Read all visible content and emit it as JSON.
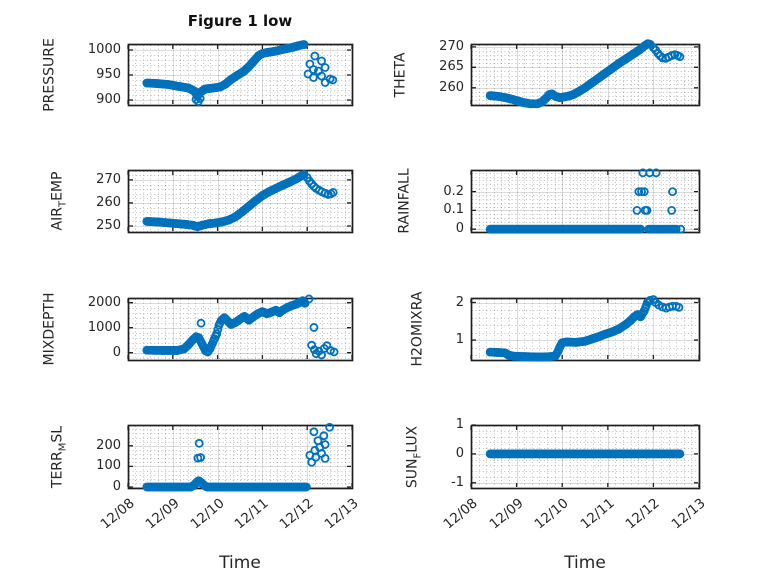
{
  "figure": {
    "title": "Figure 1 low",
    "xlabel": "Time",
    "background": "#ffffff",
    "accent_color": "#0072BD",
    "axis_color": "#262626"
  },
  "chart_data": {
    "type": "scatter",
    "title": "Figure 1 low",
    "xlabel": "Time",
    "marker": "open-circle",
    "marker_color": "#0072BD",
    "grid": "major-solid-minor-dotted",
    "xlim": [
      0,
      5
    ],
    "x_tick_values": [
      0,
      1,
      2,
      3,
      4,
      5
    ],
    "x_tick_labels": [
      "12/08",
      "12/09",
      "12/10",
      "12/11",
      "12/12",
      "12/13"
    ],
    "x_minor_step": 0.16667,
    "sample_step": 0.025,
    "subplots": [
      {
        "id": "pressure",
        "row": 0,
        "col": 0,
        "ylabel": {
          "pre": "PRESSURE",
          "sub": "",
          "post": ""
        },
        "ytick_values": [
          900,
          950,
          1000
        ],
        "ytick_labels": [
          "900",
          "950",
          "1000"
        ],
        "ylim": [
          890,
          1012
        ],
        "trend": [
          [
            0.42,
            934
          ],
          [
            0.65,
            933
          ],
          [
            0.9,
            931
          ],
          [
            1.15,
            927
          ],
          [
            1.35,
            924
          ],
          [
            1.48,
            918
          ],
          [
            1.55,
            908
          ],
          [
            1.62,
            916
          ],
          [
            1.72,
            922
          ],
          [
            1.9,
            924
          ],
          [
            2.05,
            926
          ],
          [
            2.18,
            932
          ],
          [
            2.3,
            941
          ],
          [
            2.45,
            950
          ],
          [
            2.58,
            957
          ],
          [
            2.7,
            967
          ],
          [
            2.82,
            979
          ],
          [
            2.92,
            989
          ],
          [
            3.0,
            993
          ],
          [
            3.1,
            995
          ],
          [
            3.25,
            997
          ],
          [
            3.4,
            1000
          ],
          [
            3.55,
            1003
          ],
          [
            3.7,
            1006
          ],
          [
            3.82,
            1009
          ],
          [
            3.93,
            1011
          ]
        ],
        "scatter": [
          [
            1.52,
            901
          ],
          [
            1.57,
            897
          ],
          [
            1.61,
            903
          ],
          [
            4.02,
            952
          ],
          [
            4.06,
            972
          ],
          [
            4.14,
            961
          ],
          [
            4.14,
            945
          ],
          [
            4.17,
            988
          ],
          [
            4.25,
            958
          ],
          [
            4.32,
            978
          ],
          [
            4.32,
            948
          ],
          [
            4.4,
            965
          ],
          [
            4.4,
            935
          ],
          [
            4.51,
            942
          ],
          [
            4.57,
            940
          ]
        ]
      },
      {
        "id": "theta",
        "row": 0,
        "col": 1,
        "ylabel": {
          "pre": "THETA",
          "sub": "",
          "post": ""
        },
        "ytick_values": [
          260,
          265,
          270
        ],
        "ytick_labels": [
          "260",
          "265",
          "270"
        ],
        "ylim": [
          255.8,
          270.7
        ],
        "trend": [
          [
            0.42,
            258.1
          ],
          [
            0.6,
            257.9
          ],
          [
            0.8,
            257.5
          ],
          [
            1.0,
            256.9
          ],
          [
            1.15,
            256.4
          ],
          [
            1.3,
            256.1
          ],
          [
            1.45,
            256.1
          ],
          [
            1.55,
            256.5
          ],
          [
            1.65,
            257.5
          ],
          [
            1.72,
            258.4
          ],
          [
            1.78,
            258.5
          ],
          [
            1.85,
            257.9
          ],
          [
            1.95,
            257.6
          ],
          [
            2.05,
            257.8
          ],
          [
            2.15,
            258.0
          ],
          [
            2.25,
            258.4
          ],
          [
            2.35,
            259.0
          ],
          [
            2.5,
            260.0
          ],
          [
            2.65,
            261.2
          ],
          [
            2.8,
            262.4
          ],
          [
            2.95,
            263.6
          ],
          [
            3.1,
            264.8
          ],
          [
            3.25,
            266.0
          ],
          [
            3.4,
            267.1
          ],
          [
            3.55,
            268.2
          ],
          [
            3.7,
            269.3
          ],
          [
            3.8,
            270.2
          ],
          [
            3.88,
            270.8
          ],
          [
            3.93,
            270.6
          ]
        ],
        "scatter": [
          [
            4.0,
            269.8
          ],
          [
            4.05,
            269.2
          ],
          [
            4.1,
            268.4
          ],
          [
            4.15,
            267.8
          ],
          [
            4.2,
            267.3
          ],
          [
            4.27,
            267.2
          ],
          [
            4.33,
            267.5
          ],
          [
            4.4,
            267.9
          ],
          [
            4.47,
            268.1
          ],
          [
            4.53,
            267.9
          ],
          [
            4.58,
            267.6
          ]
        ]
      },
      {
        "id": "air-temp",
        "row": 1,
        "col": 0,
        "ylabel": {
          "pre": "AIR",
          "sub": "T",
          "post": "EMP"
        },
        "ytick_values": [
          250,
          260,
          270
        ],
        "ytick_labels": [
          "250",
          "260",
          "270"
        ],
        "ylim": [
          247.4,
          274.3
        ],
        "trend": [
          [
            0.42,
            252.0
          ],
          [
            0.7,
            251.7
          ],
          [
            1.0,
            251.2
          ],
          [
            1.3,
            250.7
          ],
          [
            1.45,
            250.3
          ],
          [
            1.55,
            249.7
          ],
          [
            1.65,
            250.3
          ],
          [
            1.8,
            251.0
          ],
          [
            1.95,
            251.3
          ],
          [
            2.1,
            251.8
          ],
          [
            2.25,
            252.6
          ],
          [
            2.4,
            254.0
          ],
          [
            2.55,
            256.2
          ],
          [
            2.7,
            258.6
          ],
          [
            2.85,
            261.0
          ],
          [
            3.0,
            263.2
          ],
          [
            3.15,
            264.9
          ],
          [
            3.3,
            266.3
          ],
          [
            3.45,
            267.7
          ],
          [
            3.6,
            269.0
          ],
          [
            3.75,
            270.4
          ],
          [
            3.87,
            271.8
          ],
          [
            3.93,
            272.4
          ]
        ],
        "scatter": [
          [
            4.0,
            271.0
          ],
          [
            4.05,
            269.5
          ],
          [
            4.1,
            268.3
          ],
          [
            4.15,
            267.2
          ],
          [
            4.2,
            266.3
          ],
          [
            4.27,
            265.5
          ],
          [
            4.33,
            264.8
          ],
          [
            4.4,
            264.2
          ],
          [
            4.47,
            263.7
          ],
          [
            4.53,
            264.0
          ],
          [
            4.58,
            264.6
          ]
        ]
      },
      {
        "id": "rainfall",
        "row": 1,
        "col": 1,
        "ylabel": {
          "pre": "RAINFALL",
          "sub": "",
          "post": ""
        },
        "ytick_values": [
          0,
          0.1,
          0.2
        ],
        "ytick_labels": [
          "0",
          "0.1",
          "0.2"
        ],
        "ylim": [
          -0.015,
          0.315
        ],
        "trend": [
          [
            0.42,
            0
          ],
          [
            3.72,
            0
          ]
        ],
        "scatter": [
          [
            3.9,
            0
          ],
          [
            3.94,
            0
          ],
          [
            3.98,
            0
          ],
          [
            4.02,
            0
          ],
          [
            4.06,
            0
          ],
          [
            4.1,
            0
          ],
          [
            4.14,
            0
          ],
          [
            4.18,
            0
          ],
          [
            4.22,
            0
          ],
          [
            4.26,
            0
          ],
          [
            4.3,
            0
          ],
          [
            4.34,
            0
          ],
          [
            4.38,
            0
          ],
          [
            4.42,
            0
          ],
          [
            4.46,
            0
          ],
          [
            4.5,
            0
          ],
          [
            4.6,
            0
          ],
          [
            3.64,
            0.1
          ],
          [
            3.82,
            0.1
          ],
          [
            3.86,
            0.1
          ],
          [
            4.4,
            0.1
          ],
          [
            3.68,
            0.2
          ],
          [
            3.74,
            0.2
          ],
          [
            3.8,
            0.2
          ],
          [
            4.42,
            0.2
          ],
          [
            3.77,
            0.3
          ],
          [
            3.92,
            0.3
          ],
          [
            4.06,
            0.3
          ]
        ]
      },
      {
        "id": "mixdepth",
        "row": 2,
        "col": 0,
        "ylabel": {
          "pre": "MIXDEPTH",
          "sub": "",
          "post": ""
        },
        "ytick_values": [
          0,
          1000,
          2000
        ],
        "ytick_labels": [
          "0",
          "1000",
          "2000"
        ],
        "ylim": [
          -292,
          2188
        ],
        "trend": [
          [
            0.42,
            100
          ],
          [
            0.8,
            90
          ],
          [
            1.1,
            90
          ],
          [
            1.25,
            150
          ],
          [
            1.35,
            320
          ],
          [
            1.45,
            520
          ],
          [
            1.52,
            640
          ],
          [
            1.58,
            600
          ],
          [
            1.63,
            430
          ],
          [
            1.68,
            260
          ],
          [
            1.73,
            80
          ],
          [
            1.78,
            30
          ],
          [
            1.83,
            160
          ],
          [
            1.88,
            350
          ],
          [
            1.93,
            560
          ],
          [
            1.98,
            760
          ],
          [
            2.03,
            1100
          ],
          [
            2.08,
            1280
          ],
          [
            2.15,
            1400
          ],
          [
            2.22,
            1280
          ],
          [
            2.3,
            1130
          ],
          [
            2.4,
            1210
          ],
          [
            2.5,
            1340
          ],
          [
            2.6,
            1450
          ],
          [
            2.7,
            1300
          ],
          [
            2.8,
            1440
          ],
          [
            2.9,
            1560
          ],
          [
            3.0,
            1640
          ],
          [
            3.1,
            1560
          ],
          [
            3.2,
            1620
          ],
          [
            3.3,
            1700
          ],
          [
            3.38,
            1600
          ],
          [
            3.45,
            1700
          ],
          [
            3.55,
            1800
          ],
          [
            3.65,
            1880
          ],
          [
            3.75,
            1940
          ],
          [
            3.85,
            2020
          ],
          [
            3.9,
            2080
          ],
          [
            3.95,
            1980
          ]
        ],
        "scatter": [
          [
            1.63,
            1180
          ],
          [
            4.04,
            2150
          ],
          [
            4.15,
            1010
          ],
          [
            4.1,
            300
          ],
          [
            4.16,
            120
          ],
          [
            4.2,
            -40
          ],
          [
            4.26,
            60
          ],
          [
            4.32,
            -90
          ],
          [
            4.38,
            170
          ],
          [
            4.44,
            280
          ],
          [
            4.52,
            90
          ],
          [
            4.6,
            30
          ]
        ]
      },
      {
        "id": "h2omixra",
        "row": 2,
        "col": 1,
        "ylabel": {
          "pre": "H2OMIXRA",
          "sub": "",
          "post": ""
        },
        "ytick_values": [
          1,
          2
        ],
        "ytick_labels": [
          "1",
          "2"
        ],
        "ylim": [
          0.47,
          2.12
        ],
        "trend": [
          [
            0.42,
            0.68
          ],
          [
            0.6,
            0.67
          ],
          [
            0.75,
            0.66
          ],
          [
            0.82,
            0.6
          ],
          [
            0.95,
            0.57
          ],
          [
            1.2,
            0.56
          ],
          [
            1.5,
            0.55
          ],
          [
            1.75,
            0.56
          ],
          [
            1.85,
            0.58
          ],
          [
            1.9,
            0.68
          ],
          [
            1.95,
            0.82
          ],
          [
            2.0,
            0.93
          ],
          [
            2.1,
            0.95
          ],
          [
            2.3,
            0.94
          ],
          [
            2.5,
            0.97
          ],
          [
            2.65,
            1.03
          ],
          [
            2.8,
            1.09
          ],
          [
            2.95,
            1.16
          ],
          [
            3.1,
            1.22
          ],
          [
            3.25,
            1.3
          ],
          [
            3.4,
            1.42
          ],
          [
            3.5,
            1.52
          ],
          [
            3.58,
            1.62
          ],
          [
            3.65,
            1.68
          ],
          [
            3.72,
            1.62
          ],
          [
            3.8,
            1.78
          ],
          [
            3.87,
            2.0
          ],
          [
            3.93,
            2.06
          ]
        ],
        "scatter": [
          [
            4.0,
            2.08
          ],
          [
            4.05,
            2.0
          ],
          [
            4.12,
            1.93
          ],
          [
            4.2,
            1.88
          ],
          [
            4.28,
            1.85
          ],
          [
            4.35,
            1.88
          ],
          [
            4.42,
            1.9
          ],
          [
            4.5,
            1.9
          ],
          [
            4.56,
            1.87
          ]
        ]
      },
      {
        "id": "terr-msl",
        "row": 3,
        "col": 0,
        "ylabel": {
          "pre": "TERR",
          "sub": "M",
          "post": "SL"
        },
        "ytick_values": [
          0,
          100,
          200
        ],
        "ytick_labels": [
          "0",
          "100",
          "200"
        ],
        "ylim": [
          -5,
          301
        ],
        "trend": [
          [
            0.42,
            0
          ],
          [
            1.4,
            0
          ],
          [
            1.47,
            8
          ],
          [
            1.53,
            22
          ],
          [
            1.58,
            30
          ],
          [
            1.64,
            20
          ],
          [
            1.7,
            8
          ],
          [
            1.76,
            0
          ],
          [
            3.98,
            0
          ]
        ],
        "scatter": [
          [
            1.56,
            140
          ],
          [
            1.62,
            143
          ],
          [
            1.59,
            212
          ],
          [
            4.15,
            268
          ],
          [
            4.5,
            290
          ],
          [
            4.37,
            249
          ],
          [
            4.24,
            225
          ],
          [
            4.4,
            206
          ],
          [
            4.28,
            192
          ],
          [
            4.17,
            178
          ],
          [
            4.32,
            163
          ],
          [
            4.06,
            154
          ],
          [
            4.19,
            144
          ],
          [
            4.4,
            139
          ],
          [
            4.1,
            120
          ]
        ]
      },
      {
        "id": "sun-flux",
        "row": 3,
        "col": 1,
        "ylabel": {
          "pre": "SUN",
          "sub": "F",
          "post": "LUX"
        },
        "ytick_values": [
          -1,
          0,
          1
        ],
        "ytick_labels": [
          "-1",
          "0",
          "1"
        ],
        "ylim": [
          -1.18,
          1.0
        ],
        "trend": [
          [
            0.42,
            0
          ],
          [
            4.58,
            0
          ]
        ],
        "scatter": []
      }
    ]
  }
}
